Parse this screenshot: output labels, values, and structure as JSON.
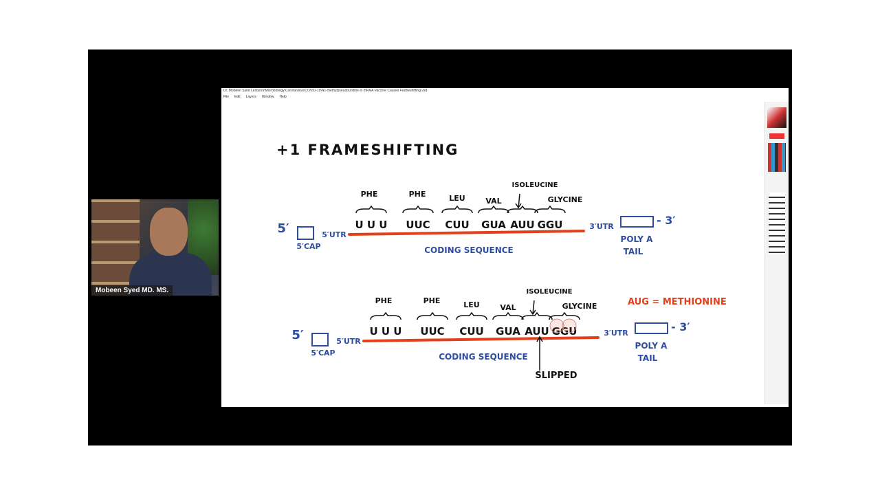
{
  "window": {
    "title": "Dr. Mobeen Syed Lectures\\Microbiology\\Coronavirus\\COVID-19\\N1-methylpseudouridine in mRNA Vaccine Causes Frameshifting.vsd",
    "menu": [
      "File",
      "Edit",
      "Layers",
      "Window",
      "Help"
    ]
  },
  "webcam": {
    "name": "Mobeen Syed MD. MS."
  },
  "slide": {
    "title": "+1 FRAMESHIFTING",
    "diagrams": [
      {
        "five_prime": "5′",
        "cap": "5′CAP",
        "utr5": "5′UTR",
        "utr3": "3′UTR",
        "three_prime": "- 3′",
        "poly_a": "POLY A",
        "tail": "TAIL",
        "coding": "CODING SEQUENCE",
        "codons": [
          {
            "label": "PHE",
            "codon": "U U U"
          },
          {
            "label": "PHE",
            "codon": "UUC"
          },
          {
            "label": "LEU",
            "codon": "CUU"
          },
          {
            "label": "VAL",
            "codon": "GUA"
          },
          {
            "label": "ISOLEUCINE",
            "codon": "AUU"
          },
          {
            "label": "GLYCINE",
            "codon": "GGU"
          }
        ]
      },
      {
        "five_prime": "5′",
        "cap": "5′CAP",
        "utr5": "5′UTR",
        "utr3": "3′UTR",
        "three_prime": "- 3′",
        "poly_a": "POLY A",
        "tail": "TAIL",
        "coding": "CODING SEQUENCE",
        "codons": [
          {
            "label": "PHE",
            "codon": "U U U"
          },
          {
            "label": "PHE",
            "codon": "UUC"
          },
          {
            "label": "LEU",
            "codon": "CUU"
          },
          {
            "label": "VAL",
            "codon": "GUA"
          },
          {
            "label": "ISOLEUCINE",
            "codon": "AUU"
          },
          {
            "label": "GLYCINE",
            "codon": "GGU"
          }
        ],
        "note": "AUG = METHIONINE",
        "slipped": "SLIPPED"
      }
    ]
  }
}
